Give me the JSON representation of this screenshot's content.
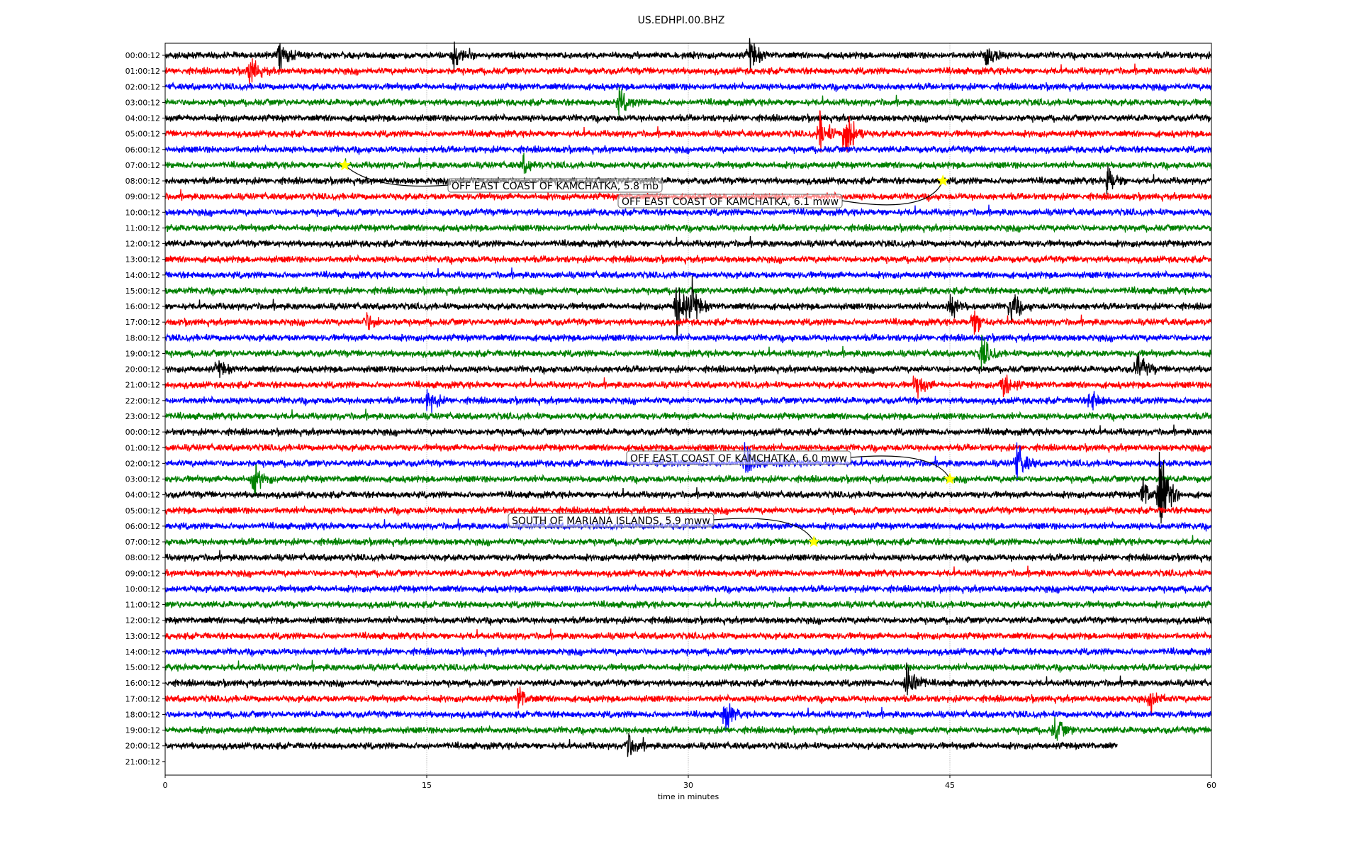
{
  "chart_data": {
    "type": "line",
    "title": "US.EDHPI.00.BHZ",
    "xlabel": "time in minutes",
    "ylabel": "",
    "xlim": [
      0,
      60
    ],
    "xticks": [
      "0",
      "15",
      "30",
      "45",
      "60"
    ],
    "xtick_values": [
      0,
      15,
      30,
      45,
      60
    ],
    "grid": "vertical dotted at x ticks",
    "ytick_labels": [
      "00:00:12",
      "01:00:12",
      "02:00:12",
      "03:00:12",
      "04:00:12",
      "05:00:12",
      "06:00:12",
      "07:00:12",
      "08:00:12",
      "09:00:12",
      "10:00:12",
      "11:00:12",
      "12:00:12",
      "13:00:12",
      "14:00:12",
      "15:00:12",
      "16:00:12",
      "17:00:12",
      "18:00:12",
      "19:00:12",
      "20:00:12",
      "21:00:12",
      "22:00:12",
      "23:00:12",
      "00:00:12",
      "01:00:12",
      "02:00:12",
      "03:00:12",
      "04:00:12",
      "05:00:12",
      "06:00:12",
      "07:00:12",
      "08:00:12",
      "09:00:12",
      "10:00:12",
      "11:00:12",
      "12:00:12",
      "13:00:12",
      "14:00:12",
      "15:00:12",
      "16:00:12",
      "17:00:12",
      "18:00:12",
      "19:00:12",
      "20:00:12",
      "21:00:12"
    ],
    "trace_colors": [
      "#000000",
      "#ff0000",
      "#0000ff",
      "#008000"
    ],
    "trace_count": 45,
    "last_trace_end_minute": 54.6,
    "bursts": [
      {
        "row": 0,
        "minute": 6.5,
        "amp": 2
      },
      {
        "row": 0,
        "minute": 16.5,
        "amp": 1.5
      },
      {
        "row": 0,
        "minute": 33.5,
        "amp": 2
      },
      {
        "row": 0,
        "minute": 47,
        "amp": 2
      },
      {
        "row": 1,
        "minute": 4.8,
        "amp": 2
      },
      {
        "row": 3,
        "minute": 26,
        "amp": 1.5
      },
      {
        "row": 5,
        "minute": 37.5,
        "amp": 2.5
      },
      {
        "row": 5,
        "minute": 39,
        "amp": 4
      },
      {
        "row": 7,
        "minute": 20.5,
        "amp": 1
      },
      {
        "row": 8,
        "minute": 54,
        "amp": 2
      },
      {
        "row": 16,
        "minute": 29.3,
        "amp": 5
      },
      {
        "row": 16,
        "minute": 30.2,
        "amp": 2
      },
      {
        "row": 16,
        "minute": 45,
        "amp": 1.5
      },
      {
        "row": 16,
        "minute": 48.5,
        "amp": 2
      },
      {
        "row": 17,
        "minute": 11.5,
        "amp": 1.2
      },
      {
        "row": 17,
        "minute": 46.3,
        "amp": 2
      },
      {
        "row": 19,
        "minute": 46.8,
        "amp": 2
      },
      {
        "row": 20,
        "minute": 3,
        "amp": 1
      },
      {
        "row": 20,
        "minute": 55.7,
        "amp": 2
      },
      {
        "row": 21,
        "minute": 43,
        "amp": 1.5
      },
      {
        "row": 21,
        "minute": 48,
        "amp": 2
      },
      {
        "row": 22,
        "minute": 15,
        "amp": 1.5
      },
      {
        "row": 22,
        "minute": 53,
        "amp": 1.5
      },
      {
        "row": 26,
        "minute": 33.2,
        "amp": 2
      },
      {
        "row": 26,
        "minute": 48.8,
        "amp": 2.5
      },
      {
        "row": 27,
        "minute": 5,
        "amp": 2
      },
      {
        "row": 28,
        "minute": 56,
        "amp": 2
      },
      {
        "row": 28,
        "minute": 57,
        "amp": 6
      },
      {
        "row": 40,
        "minute": 42.5,
        "amp": 3.5
      },
      {
        "row": 41,
        "minute": 20.2,
        "amp": 1.5
      },
      {
        "row": 41,
        "minute": 56.5,
        "amp": 1.5
      },
      {
        "row": 42,
        "minute": 32,
        "amp": 2
      },
      {
        "row": 43,
        "minute": 51,
        "amp": 1.5
      },
      {
        "row": 44,
        "minute": 26.5,
        "amp": 1.5
      }
    ],
    "events": [
      {
        "label": "OFF EAST COAST OF KAMCHATKA, 5.8 mb",
        "row": 7,
        "minute": 10.3
      },
      {
        "label": "OFF EAST COAST OF KAMCHATKA, 6.1 mww",
        "row": 8,
        "minute": 44.6
      },
      {
        "label": "OFF EAST COAST OF KAMCHATKA, 6.0 mww",
        "row": 27,
        "minute": 45.0
      },
      {
        "label": "SOUTH OF MARIANA ISLANDS, 5.9 mww",
        "row": 31,
        "minute": 37.2
      }
    ],
    "event_marker_color": "#ffff00"
  }
}
